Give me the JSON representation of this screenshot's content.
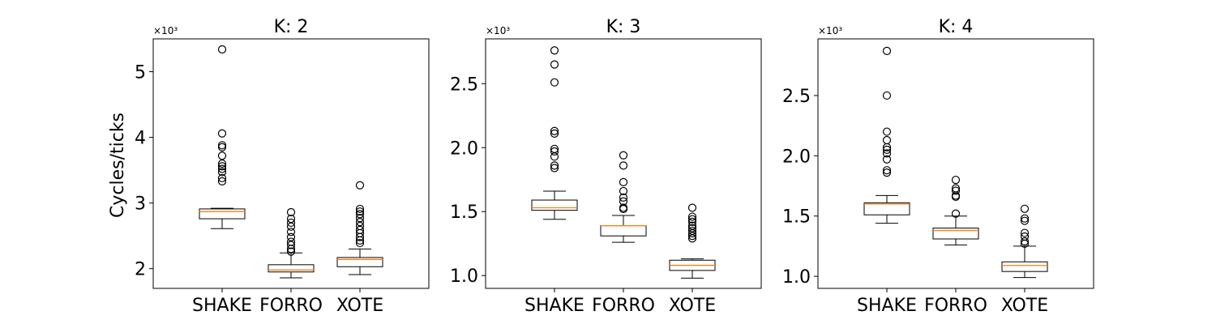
{
  "figure": {
    "ylabel": "Cycles/ticks",
    "offset_label": "×10³"
  },
  "chart_data": [
    {
      "type": "box",
      "title": "K: 2",
      "categories": [
        "SHAKE",
        "FORRO",
        "XOTE"
      ],
      "ylim": [
        1.7,
        5.5
      ],
      "yticks": [
        2,
        3,
        4,
        5
      ],
      "ytick_labels": [
        "2",
        "3",
        "4",
        "5"
      ],
      "y_multiplier": "×10³",
      "boxes": [
        {
          "whislo": 2.61,
          "q1": 2.76,
          "med": 2.87,
          "q3": 2.91,
          "whishi": 2.92,
          "fliers": [
            5.34,
            4.06,
            3.88,
            3.85,
            3.72,
            3.6,
            3.56,
            3.52,
            3.47,
            3.38,
            3.33
          ]
        },
        {
          "whislo": 1.86,
          "q1": 1.95,
          "med": 1.98,
          "q3": 2.06,
          "whishi": 2.24,
          "fliers": [
            2.86,
            2.76,
            2.7,
            2.64,
            2.56,
            2.48,
            2.41,
            2.36,
            2.3,
            2.26
          ]
        },
        {
          "whislo": 1.91,
          "q1": 2.03,
          "med": 2.14,
          "q3": 2.17,
          "whishi": 2.3,
          "fliers": [
            3.27,
            2.91,
            2.87,
            2.83,
            2.77,
            2.71,
            2.65,
            2.59,
            2.54,
            2.48,
            2.43,
            2.39
          ]
        }
      ]
    },
    {
      "type": "box",
      "title": "K: 3",
      "categories": [
        "SHAKE",
        "FORRO",
        "XOTE"
      ],
      "ylim": [
        0.9,
        2.85
      ],
      "yticks": [
        1.0,
        1.5,
        2.0,
        2.5
      ],
      "ytick_labels": [
        "1.0",
        "1.5",
        "2.0",
        "2.5"
      ],
      "y_multiplier": "×10³",
      "boxes": [
        {
          "whislo": 1.44,
          "q1": 1.51,
          "med": 1.53,
          "q3": 1.59,
          "whishi": 1.66,
          "fliers": [
            2.76,
            2.65,
            2.51,
            2.13,
            2.11,
            1.99,
            1.97,
            1.93,
            1.86,
            1.84
          ]
        },
        {
          "whislo": 1.26,
          "q1": 1.31,
          "med": 1.39,
          "q3": 1.39,
          "whishi": 1.47,
          "fliers": [
            1.94,
            1.86,
            1.73,
            1.66,
            1.61,
            1.58,
            1.53,
            1.52
          ]
        },
        {
          "whislo": 0.98,
          "q1": 1.04,
          "med": 1.08,
          "q3": 1.12,
          "whishi": 1.13,
          "fliers": [
            1.53,
            1.46,
            1.44,
            1.42,
            1.39,
            1.37,
            1.35,
            1.33,
            1.31,
            1.29
          ]
        }
      ]
    },
    {
      "type": "box",
      "title": "K: 4",
      "categories": [
        "SHAKE",
        "FORRO",
        "XOTE"
      ],
      "ylim": [
        0.9,
        2.97
      ],
      "yticks": [
        1.0,
        1.5,
        2.0,
        2.5
      ],
      "ytick_labels": [
        "1.0",
        "1.5",
        "2.0",
        "2.5"
      ],
      "y_multiplier": "×10³",
      "boxes": [
        {
          "whislo": 1.44,
          "q1": 1.51,
          "med": 1.6,
          "q3": 1.61,
          "whishi": 1.67,
          "fliers": [
            2.87,
            2.5,
            2.2,
            2.13,
            2.07,
            2.05,
            2.02,
            1.97,
            1.88,
            1.86
          ]
        },
        {
          "whislo": 1.26,
          "q1": 1.31,
          "med": 1.38,
          "q3": 1.4,
          "whishi": 1.5,
          "fliers": [
            1.8,
            1.73,
            1.71,
            1.67,
            1.66,
            1.52
          ]
        },
        {
          "whislo": 0.99,
          "q1": 1.04,
          "med": 1.09,
          "q3": 1.12,
          "whishi": 1.25,
          "fliers": [
            1.56,
            1.48,
            1.46,
            1.36,
            1.33,
            1.29,
            1.27
          ]
        }
      ]
    }
  ]
}
